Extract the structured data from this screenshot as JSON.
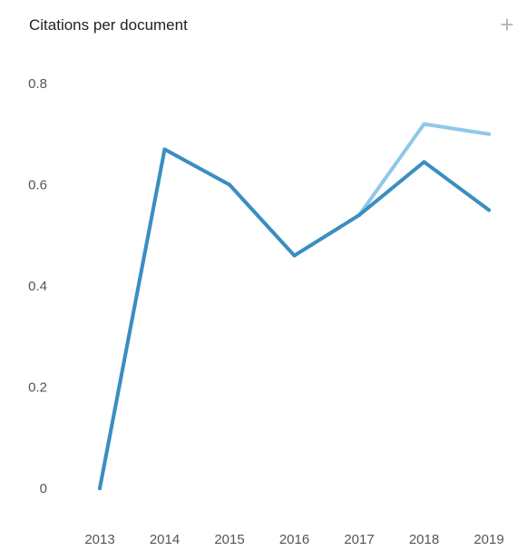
{
  "header": {
    "title": "Citations per document",
    "add_icon": "plus-icon"
  },
  "colors": {
    "series_primary": "#3b8ec0",
    "series_secondary": "#8fc8e8"
  },
  "chart_data": {
    "type": "line",
    "title": "Citations per document",
    "xlabel": "",
    "ylabel": "",
    "x": [
      "2013",
      "2014",
      "2015",
      "2016",
      "2017",
      "2018",
      "2019"
    ],
    "y_ticks": [
      "0",
      "0.2",
      "0.4",
      "0.6",
      "0.8"
    ],
    "ylim": [
      0,
      0.8
    ],
    "grid": false,
    "legend": "none",
    "series": [
      {
        "values": [
          0,
          0.67,
          0.6,
          0.46,
          0.54,
          0.72,
          0.7
        ],
        "color": "#8fc8e8"
      },
      {
        "values": [
          0,
          0.67,
          0.6,
          0.46,
          0.54,
          0.645,
          0.55
        ],
        "color": "#3b8ec0"
      }
    ]
  }
}
